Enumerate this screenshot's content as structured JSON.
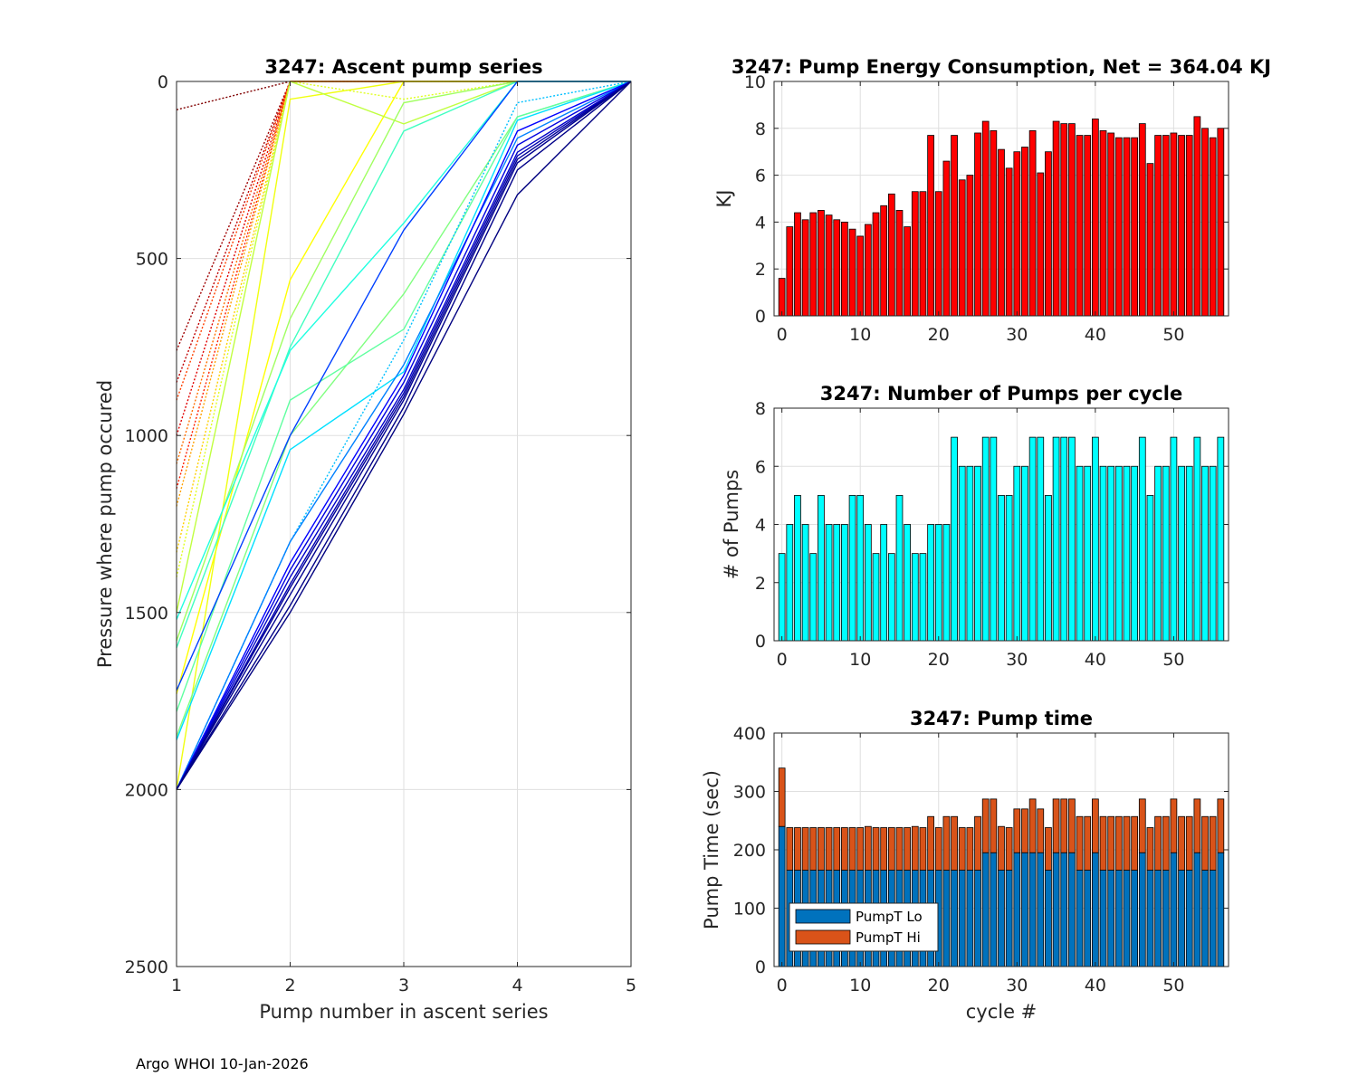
{
  "footer": "Argo WHOI 10-Jan-2026",
  "colors": {
    "energy": "#ff0000",
    "pumps": "#00ffff",
    "lo": "#0072bd",
    "hi": "#d95319"
  },
  "chart_data": [
    {
      "id": "ascent",
      "type": "line",
      "title": "3247: Ascent pump series",
      "xlabel": "Pump number in ascent series",
      "ylabel": "Pressure where pump occured",
      "xlim": [
        1,
        5
      ],
      "ylim": [
        0,
        2500
      ],
      "y_reversed": true,
      "xticks": [
        "1",
        "2",
        "3",
        "4",
        "5"
      ],
      "yticks": [
        "0",
        "500",
        "1000",
        "1500",
        "2000",
        "2500"
      ],
      "note": "One line per cycle, colored by cycle (jet colormap, early=red, late=blue); dotted segments indicate smaller pumps. Pump 5 at surface (0).",
      "series": [
        {
          "cycle": 0,
          "color": "#800000",
          "style": "dotted",
          "values": [
            80,
            0,
            0,
            0,
            0
          ]
        },
        {
          "cycle": 1,
          "color": "#a00000",
          "style": "dotted",
          "values": [
            760,
            0,
            0,
            0,
            0
          ]
        },
        {
          "cycle": 2,
          "color": "#c00000",
          "style": "dotted",
          "values": [
            850,
            0,
            0,
            0,
            0
          ]
        },
        {
          "cycle": 3,
          "color": "#e00000",
          "style": "dotted",
          "values": [
            1000,
            0,
            0,
            0,
            0
          ]
        },
        {
          "cycle": 4,
          "color": "#ff2000",
          "style": "dotted",
          "values": [
            1150,
            0,
            0,
            0,
            0
          ]
        },
        {
          "cycle": 5,
          "color": "#ff4000",
          "style": "dotted",
          "values": [
            900,
            0,
            0,
            0,
            0
          ]
        },
        {
          "cycle": 6,
          "color": "#ff7000",
          "style": "dotted",
          "values": [
            1080,
            0,
            0,
            0,
            0
          ]
        },
        {
          "cycle": 7,
          "color": "#ffa000",
          "style": "dotted",
          "values": [
            1200,
            0,
            0,
            0,
            0
          ]
        },
        {
          "cycle": 8,
          "color": "#ffd000",
          "style": "dotted",
          "values": [
            1330,
            0,
            0,
            0,
            0
          ]
        },
        {
          "cycle": 9,
          "color": "#ffff00",
          "style": "solid",
          "values": [
            1730,
            560,
            0,
            0,
            0
          ]
        },
        {
          "cycle": 10,
          "color": "#f0ff10",
          "style": "solid",
          "values": [
            2000,
            50,
            0,
            0,
            0
          ]
        },
        {
          "cycle": 11,
          "color": "#e0ff20",
          "style": "dotted",
          "values": [
            1400,
            0,
            50,
            0,
            0
          ]
        },
        {
          "cycle": 12,
          "color": "#c0ff40",
          "style": "solid",
          "values": [
            1500,
            0,
            120,
            0,
            0
          ]
        },
        {
          "cycle": 13,
          "color": "#a0ff60",
          "style": "solid",
          "values": [
            1580,
            670,
            60,
            0,
            0
          ]
        },
        {
          "cycle": 14,
          "color": "#80ff80",
          "style": "solid",
          "values": [
            1850,
            1000,
            600,
            100,
            0
          ]
        },
        {
          "cycle": 15,
          "color": "#60ffa0",
          "style": "solid",
          "values": [
            1780,
            900,
            700,
            100,
            0
          ]
        },
        {
          "cycle": 16,
          "color": "#40ffc0",
          "style": "solid",
          "values": [
            1600,
            750,
            140,
            0,
            0
          ]
        },
        {
          "cycle": 17,
          "color": "#20ffe0",
          "style": "solid",
          "values": [
            1520,
            760,
            400,
            0,
            0
          ]
        },
        {
          "cycle": 18,
          "color": "#00e0ff",
          "style": "solid",
          "values": [
            1860,
            1040,
            820,
            110,
            0
          ]
        },
        {
          "cycle": 19,
          "color": "#00c0ff",
          "style": "dotted",
          "values": [
            2000,
            1300,
            730,
            60,
            0
          ]
        },
        {
          "cycle": 20,
          "color": "#0080ff",
          "style": "solid",
          "values": [
            2000,
            1300,
            800,
            160,
            0
          ]
        },
        {
          "cycle": 21,
          "color": "#0040ff",
          "style": "solid",
          "values": [
            1720,
            1000,
            420,
            0,
            0
          ]
        },
        {
          "cycle": 22,
          "color": "#0000ff",
          "style": "solid",
          "values": [
            2000,
            1360,
            830,
            140,
            0
          ]
        },
        {
          "cycle": 23,
          "color": "#0000e0",
          "style": "solid",
          "values": [
            2000,
            1380,
            850,
            180,
            0
          ]
        },
        {
          "cycle": 24,
          "color": "#0000c8",
          "style": "solid",
          "values": [
            2000,
            1400,
            870,
            200,
            0
          ]
        },
        {
          "cycle": 25,
          "color": "#0000b0",
          "style": "solid",
          "values": [
            2000,
            1420,
            880,
            210,
            0
          ]
        },
        {
          "cycle": 26,
          "color": "#000098",
          "style": "solid",
          "values": [
            2000,
            1430,
            890,
            220,
            0
          ]
        },
        {
          "cycle": 27,
          "color": "#000090",
          "style": "solid",
          "values": [
            2000,
            1450,
            900,
            230,
            0
          ]
        },
        {
          "cycle": 28,
          "color": "#000088",
          "style": "solid",
          "values": [
            2000,
            1480,
            920,
            250,
            0
          ]
        },
        {
          "cycle": 29,
          "color": "#000080",
          "style": "solid",
          "values": [
            2000,
            1500,
            940,
            320,
            0
          ]
        }
      ]
    },
    {
      "id": "energy",
      "type": "bar",
      "title": "3247: Pump Energy Consumption,  Net = 364.04 KJ",
      "xlabel": "",
      "ylabel": "KJ",
      "xlim": [
        -1,
        57
      ],
      "ylim": [
        0,
        10
      ],
      "xticks": [
        "0",
        "10",
        "20",
        "30",
        "40",
        "50"
      ],
      "yticks": [
        "0",
        "2",
        "4",
        "6",
        "8",
        "10"
      ],
      "x": [
        0,
        1,
        2,
        3,
        4,
        5,
        6,
        7,
        8,
        9,
        10,
        11,
        12,
        13,
        14,
        15,
        16,
        17,
        18,
        19,
        20,
        21,
        22,
        23,
        24,
        25,
        26,
        27,
        28,
        29,
        30,
        31,
        32,
        33,
        34,
        35,
        36,
        37,
        38,
        39,
        40,
        41,
        42,
        43,
        44,
        45,
        46,
        47,
        48,
        49,
        50,
        51,
        52,
        53,
        54,
        55,
        56
      ],
      "values": [
        1.6,
        3.8,
        4.4,
        4.1,
        4.4,
        4.5,
        4.3,
        4.1,
        4.0,
        3.7,
        3.4,
        3.9,
        4.4,
        4.7,
        5.2,
        4.5,
        3.8,
        5.3,
        5.3,
        7.7,
        5.3,
        6.6,
        7.7,
        5.8,
        6.0,
        7.8,
        8.3,
        7.9,
        7.1,
        6.3,
        7.0,
        7.2,
        7.9,
        6.1,
        7.0,
        8.3,
        8.2,
        8.2,
        7.7,
        7.7,
        8.4,
        7.9,
        7.8,
        7.6,
        7.6,
        7.6,
        8.2,
        6.5,
        7.7,
        7.7,
        7.8,
        7.7,
        7.7,
        8.5,
        8.0,
        7.6,
        8.0
      ]
    },
    {
      "id": "pumps",
      "type": "bar",
      "title": "3247: Number of Pumps per cycle",
      "xlabel": "",
      "ylabel": "# of Pumps",
      "xlim": [
        -1,
        57
      ],
      "ylim": [
        0,
        8
      ],
      "xticks": [
        "0",
        "10",
        "20",
        "30",
        "40",
        "50"
      ],
      "yticks": [
        "0",
        "2",
        "4",
        "6",
        "8"
      ],
      "x": [
        0,
        1,
        2,
        3,
        4,
        5,
        6,
        7,
        8,
        9,
        10,
        11,
        12,
        13,
        14,
        15,
        16,
        17,
        18,
        19,
        20,
        21,
        22,
        23,
        24,
        25,
        26,
        27,
        28,
        29,
        30,
        31,
        32,
        33,
        34,
        35,
        36,
        37,
        38,
        39,
        40,
        41,
        42,
        43,
        44,
        45,
        46,
        47,
        48,
        49,
        50,
        51,
        52,
        53,
        54,
        55,
        56
      ],
      "values": [
        3,
        4,
        5,
        4,
        3,
        5,
        4,
        4,
        4,
        5,
        5,
        4,
        3,
        4,
        3,
        5,
        4,
        3,
        3,
        4,
        4,
        4,
        7,
        6,
        6,
        6,
        7,
        7,
        5,
        5,
        6,
        6,
        7,
        7,
        5,
        7,
        7,
        7,
        6,
        6,
        7,
        6,
        6,
        6,
        6,
        6,
        7,
        5,
        6,
        6,
        7,
        6,
        6,
        7,
        6,
        6,
        7
      ]
    },
    {
      "id": "pumptime",
      "type": "bar",
      "stacked": true,
      "title": "3247: Pump time",
      "xlabel": "cycle #",
      "ylabel": "Pump Time (sec)",
      "xlim": [
        -1,
        57
      ],
      "ylim": [
        0,
        400
      ],
      "xticks": [
        "0",
        "10",
        "20",
        "30",
        "40",
        "50"
      ],
      "yticks": [
        "0",
        "100",
        "200",
        "300",
        "400"
      ],
      "legend": "bottom-left",
      "x": [
        0,
        1,
        2,
        3,
        4,
        5,
        6,
        7,
        8,
        9,
        10,
        11,
        12,
        13,
        14,
        15,
        16,
        17,
        18,
        19,
        20,
        21,
        22,
        23,
        24,
        25,
        26,
        27,
        28,
        29,
        30,
        31,
        32,
        33,
        34,
        35,
        36,
        37,
        38,
        39,
        40,
        41,
        42,
        43,
        44,
        45,
        46,
        47,
        48,
        49,
        50,
        51,
        52,
        53,
        54,
        55,
        56
      ],
      "series": [
        {
          "name": "PumpT Lo",
          "values": [
            240,
            165,
            165,
            165,
            165,
            165,
            165,
            165,
            165,
            165,
            165,
            165,
            165,
            165,
            165,
            165,
            165,
            165,
            165,
            165,
            165,
            165,
            165,
            165,
            165,
            165,
            195,
            195,
            165,
            165,
            195,
            195,
            195,
            195,
            165,
            195,
            195,
            195,
            165,
            165,
            195,
            165,
            165,
            165,
            165,
            165,
            195,
            165,
            165,
            165,
            195,
            165,
            165,
            195,
            165,
            165,
            195
          ]
        },
        {
          "name": "PumpT Hi",
          "values": [
            100,
            73,
            73,
            73,
            73,
            73,
            73,
            73,
            73,
            73,
            73,
            75,
            73,
            73,
            73,
            73,
            73,
            75,
            73,
            92,
            73,
            92,
            92,
            73,
            73,
            92,
            92,
            92,
            75,
            73,
            75,
            75,
            92,
            75,
            73,
            92,
            92,
            92,
            92,
            92,
            92,
            92,
            92,
            92,
            92,
            92,
            92,
            73,
            92,
            92,
            92,
            92,
            92,
            92,
            92,
            92,
            92
          ]
        }
      ]
    }
  ]
}
